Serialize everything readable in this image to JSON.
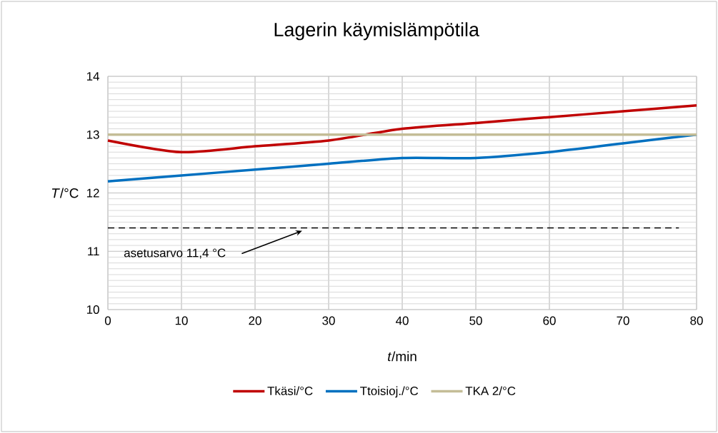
{
  "chart_data": {
    "type": "line",
    "title": "Lagerin käymislämpötila",
    "xlabel": "*t*/min",
    "ylabel": "*T*/°C",
    "x": [
      0,
      10,
      20,
      30,
      40,
      50,
      60,
      70,
      80
    ],
    "series": [
      {
        "name": "Tkäsi/°C",
        "color": "#c00000",
        "values": [
          12.9,
          12.7,
          12.8,
          12.9,
          13.1,
          13.2,
          13.3,
          13.4,
          13.5
        ]
      },
      {
        "name": "Ttoisioj./°C",
        "color": "#0070c0",
        "values": [
          12.2,
          12.3,
          12.4,
          12.5,
          12.6,
          12.6,
          12.7,
          12.85,
          13.0
        ]
      },
      {
        "name": "TKA 2/°C",
        "color": "#c4bd97",
        "values": [
          13,
          13,
          13,
          13,
          13,
          13,
          13,
          13,
          13
        ]
      }
    ],
    "ref_lines": [
      {
        "axis": "y",
        "value": 11.4,
        "label": "asetusarvo 11,4 °C",
        "color": "#000000",
        "line_style": "dashed"
      }
    ],
    "xlim": [
      0,
      80
    ],
    "ylim": [
      10,
      14
    ],
    "xticks": [
      0,
      10,
      20,
      30,
      40,
      50,
      60,
      70,
      80
    ],
    "yticks": [
      10,
      11,
      12,
      13,
      14
    ],
    "grid": true,
    "legend": "bottom",
    "marker": "none",
    "line_style": "solid"
  }
}
